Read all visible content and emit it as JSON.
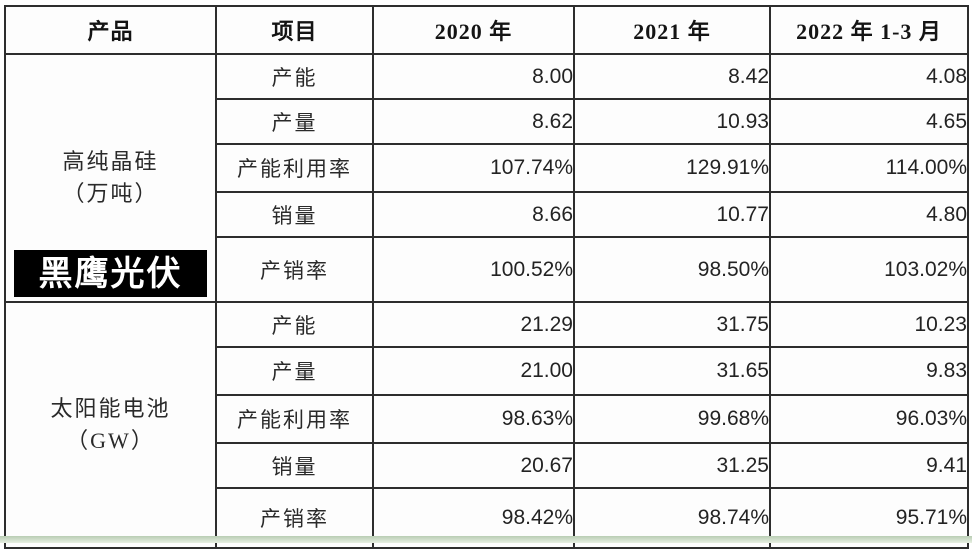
{
  "table": {
    "headers": {
      "product": "产品",
      "item": "项目",
      "y2020": "2020 年",
      "y2021": "2021 年",
      "y2022": "2022 年 1-3 月"
    },
    "groups": [
      {
        "product": "高纯晶硅",
        "unit": "（万吨）",
        "rows": [
          {
            "item": "产能",
            "values": [
              "8.00",
              "8.42",
              "4.08"
            ]
          },
          {
            "item": "产量",
            "values": [
              "8.62",
              "10.93",
              "4.65"
            ]
          },
          {
            "item": "产能利用率",
            "values": [
              "107.74%",
              "129.91%",
              "114.00%"
            ]
          },
          {
            "item": "销量",
            "values": [
              "8.66",
              "10.77",
              "4.80"
            ]
          },
          {
            "item": "产销率",
            "values": [
              "100.52%",
              "98.50%",
              "103.02%"
            ]
          }
        ]
      },
      {
        "product": "太阳能电池",
        "unit": "（GW）",
        "rows": [
          {
            "item": "产能",
            "values": [
              "21.29",
              "31.75",
              "10.23"
            ]
          },
          {
            "item": "产量",
            "values": [
              "21.00",
              "31.65",
              "9.83"
            ]
          },
          {
            "item": "产能利用率",
            "values": [
              "98.63%",
              "99.68%",
              "96.03%"
            ]
          },
          {
            "item": "销量",
            "values": [
              "20.67",
              "31.25",
              "9.41"
            ]
          },
          {
            "item": "产销率",
            "values": [
              "98.42%",
              "98.74%",
              "95.71%"
            ]
          }
        ]
      }
    ]
  },
  "watermark": {
    "logo_text": "黑鹰光伏"
  },
  "colors": {
    "table_border": "#2d2d2d",
    "logo_background": "#000000",
    "logo_text": "#ffffff",
    "bottom_strip_green": "#b9cdb4"
  }
}
